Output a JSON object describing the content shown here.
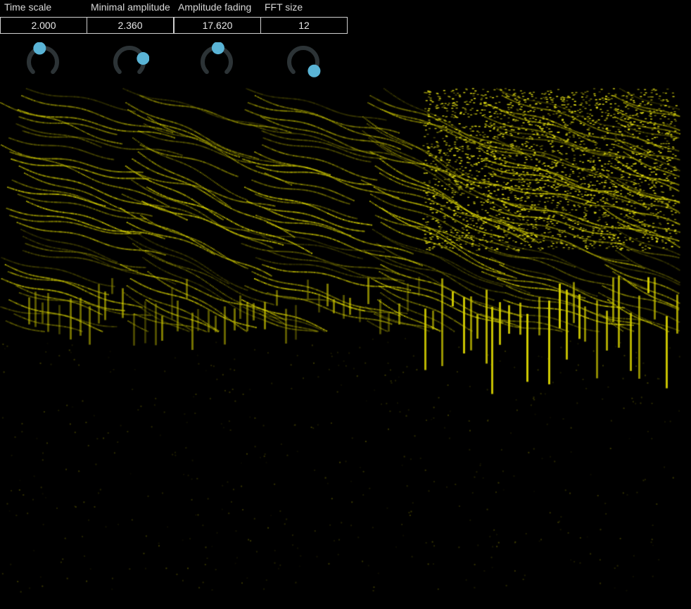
{
  "colors": {
    "background": "#000000",
    "accent_knob": "#5ab4d6",
    "knob_track": "#2c3336",
    "spectrum": "#e6e000"
  },
  "controls": [
    {
      "label": "Time scale",
      "value": "2.000",
      "knob_level": 0.45
    },
    {
      "label": "Minimal amplitude",
      "value": "2.360",
      "knob_level": 0.78
    },
    {
      "label": "Amplitude fading",
      "value": "17.620",
      "knob_level": 0.52
    },
    {
      "label": "FFT size",
      "value": "12",
      "knob_level": 0.98
    }
  ],
  "spectrogram": {
    "icon": "spectrogram-waterfall"
  }
}
